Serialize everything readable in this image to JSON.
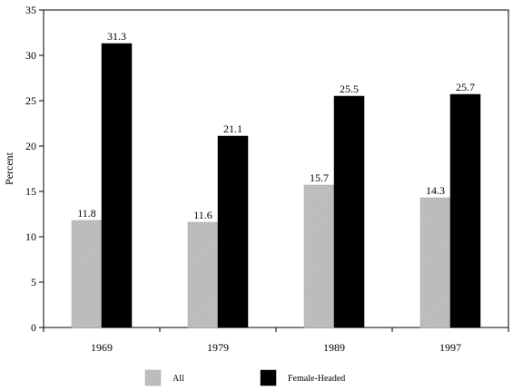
{
  "chart_data": {
    "type": "bar",
    "title": "",
    "xlabel": "",
    "ylabel": "Percent",
    "ylim": [
      0,
      35
    ],
    "yticks": [
      0,
      5,
      10,
      15,
      20,
      25,
      30,
      35
    ],
    "categories": [
      "1969",
      "1979",
      "1989",
      "1997"
    ],
    "series": [
      {
        "name": "All",
        "values": [
          11.8,
          11.6,
          15.7,
          14.3
        ],
        "color": "#b4b4b4",
        "pattern": "hatched-gray"
      },
      {
        "name": "Female-Headed",
        "values": [
          31.3,
          21.1,
          25.5,
          25.7
        ],
        "color": "#000000"
      }
    ],
    "data_labels": [
      [
        "11.8",
        "11.6",
        "15.7",
        "14.3"
      ],
      [
        "31.3",
        "21.1",
        "25.5",
        "25.7"
      ]
    ],
    "legend_position": "bottom",
    "grid": false
  }
}
